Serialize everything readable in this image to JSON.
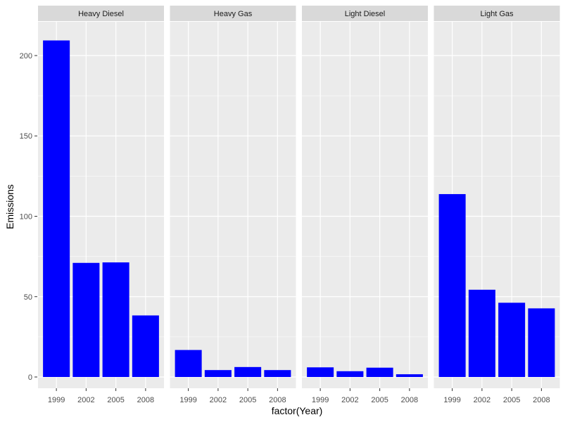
{
  "chart_data": {
    "type": "bar",
    "xlabel": "factor(Year)",
    "ylabel": "Emissions",
    "ylim": [
      -7,
      221
    ],
    "yticks": [
      0,
      50,
      100,
      150,
      200
    ],
    "categories": [
      "1999",
      "2002",
      "2005",
      "2008"
    ],
    "panels": [
      {
        "name": "Heavy Diesel",
        "values": [
          209.4,
          71.0,
          71.3,
          38.3
        ]
      },
      {
        "name": "Heavy Gas",
        "values": [
          16.8,
          4.3,
          6.2,
          4.3
        ]
      },
      {
        "name": "Light Diesel",
        "values": [
          6.0,
          3.6,
          5.8,
          1.7
        ]
      },
      {
        "name": "Light Gas",
        "values": [
          113.8,
          54.3,
          46.2,
          42.7
        ]
      }
    ],
    "grid": true,
    "bar_color": "#0000ff",
    "panel_background": "#ebebeb",
    "strip_background": "#d9d9d9",
    "grid_color": "#ffffff"
  }
}
